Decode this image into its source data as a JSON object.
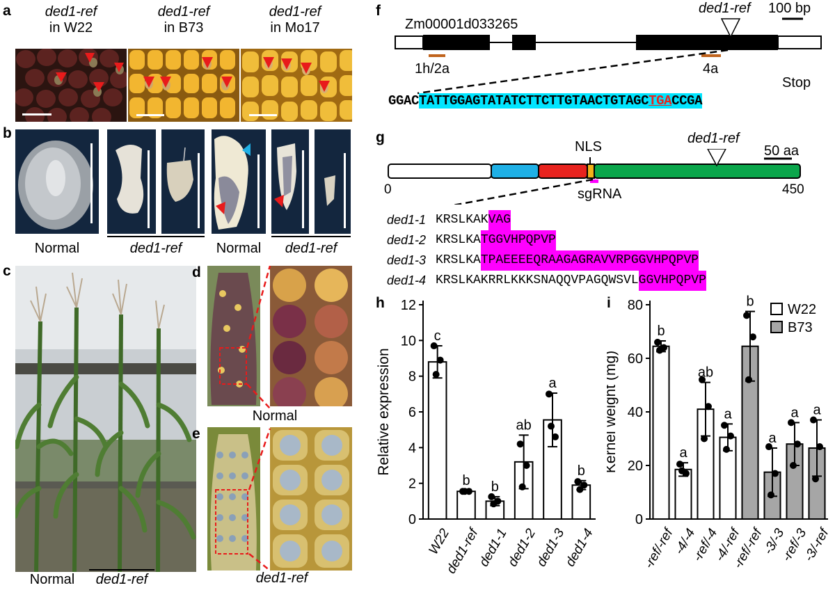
{
  "panels": {
    "a": {
      "letter": "a",
      "captions": [
        {
          "line1": "ded1-ref",
          "line2": "in W22"
        },
        {
          "line1": "ded1-ref",
          "line2": "in B73"
        },
        {
          "line1": "ded1-ref",
          "line2": "in Mo17"
        }
      ]
    },
    "b": {
      "letter": "b",
      "labels": {
        "normal1": "Normal",
        "mutant1": "ded1-ref",
        "normal2": "Normal",
        "mutant2": "ded1-ref"
      }
    },
    "c": {
      "letter": "c",
      "labels": {
        "normal": "Normal",
        "mutant": "ded1-ref"
      }
    },
    "d": {
      "letter": "d",
      "label": "Normal"
    },
    "e": {
      "letter": "e",
      "label": "ded1-ref"
    },
    "f": {
      "letter": "f",
      "gene_id": "Zm00001d033265",
      "allele": "ded1-ref",
      "scale": "100 bp",
      "primer1": "1h/2a",
      "primer2": "4a",
      "stop_label": "Stop",
      "seq_prefix": "GGAC",
      "seq_highlight": "TATTGGAGTATATCTTCTTGTAACTGTAGC",
      "seq_stop": "TGA",
      "seq_suffix": "CCGA"
    },
    "g": {
      "letter": "g",
      "nls": "NLS",
      "allele": "ded1-ref",
      "scale": "50 aa",
      "start": "0",
      "end": "450",
      "sgrna": "sgRNA",
      "alleles": [
        {
          "name": "ded1-1",
          "prefix": "KRSLKAK",
          "highlight": "VAG"
        },
        {
          "name": "ded1-2",
          "prefix": "KRSLKA",
          "highlight": "TGGVHPQPVP"
        },
        {
          "name": "ded1-3",
          "prefix": "KRSLKA",
          "highlight": "TPAEEEEQRAAGAGRAVVRPGGVHPQPVP"
        },
        {
          "name": "ded1-4",
          "prefix": "KRSLKAKRRLKKKSNAQQVPAGQWSVL",
          "highlight": "GGVHPQPVP"
        }
      ]
    }
  },
  "colors": {
    "cyan": "#00e5ff",
    "magenta": "#ff00ff",
    "red": "#e8231e",
    "orange": "#c0631c",
    "blue": "#1fb0e6",
    "green": "#0aa64b",
    "yellow": "#f2b21a",
    "gray": "#a6a6a6"
  },
  "chart_data": [
    {
      "letter": "h",
      "type": "bar",
      "ylabel": "Relative expression",
      "ylim": [
        0,
        12
      ],
      "yticks": [
        0,
        2,
        4,
        6,
        8,
        10,
        12
      ],
      "categories": [
        "W22",
        "ded1-ref",
        "ded1-1",
        "ded1-2",
        "ded1-3",
        "ded1-4"
      ],
      "values": [
        8.8,
        1.55,
        1.0,
        3.2,
        5.55,
        1.9
      ],
      "errors": [
        0.9,
        0.05,
        0.25,
        1.5,
        1.5,
        0.25
      ],
      "letters": [
        "c",
        "b",
        "b",
        "ab",
        "a",
        "b"
      ],
      "points": [
        [
          9.7,
          8.9,
          8.1
        ],
        [
          1.55,
          1.55,
          1.55
        ],
        [
          1.25,
          1.0,
          0.85
        ],
        [
          4.2,
          3.0,
          1.8
        ],
        [
          7.0,
          4.6,
          5.2
        ],
        [
          2.1,
          1.9,
          1.65
        ]
      ]
    },
    {
      "letter": "i",
      "type": "bar",
      "ylabel": "Kernel weight (mg)",
      "ylim": [
        0,
        80
      ],
      "yticks": [
        0,
        20,
        40,
        60,
        80
      ],
      "categories": [
        "-ref/-ref",
        "-4/-4",
        "-ref/-4",
        "-4/-ref",
        "-ref/-ref",
        "-3/-3",
        "-ref/-3",
        "-3/-ref"
      ],
      "values": [
        64.5,
        18.5,
        41,
        30.5,
        64.5,
        17.5,
        28,
        26.5
      ],
      "errors": [
        2,
        2.5,
        10,
        5,
        13,
        9,
        8,
        10.5
      ],
      "letters": [
        "b",
        "a",
        "ab",
        "a",
        "b",
        "a",
        "a",
        "a"
      ],
      "groups": [
        "W22",
        "W22",
        "W22",
        "W22",
        "B73",
        "B73",
        "B73",
        "B73"
      ],
      "legend": [
        "W22",
        "B73"
      ],
      "points": [
        [
          66,
          64,
          63
        ],
        [
          20.5,
          17,
          18
        ],
        [
          52,
          42,
          30
        ],
        [
          35,
          31,
          26
        ],
        [
          76,
          68,
          52
        ],
        [
          27,
          17,
          9
        ],
        [
          36,
          28,
          20
        ],
        [
          37,
          27,
          15
        ]
      ]
    }
  ]
}
